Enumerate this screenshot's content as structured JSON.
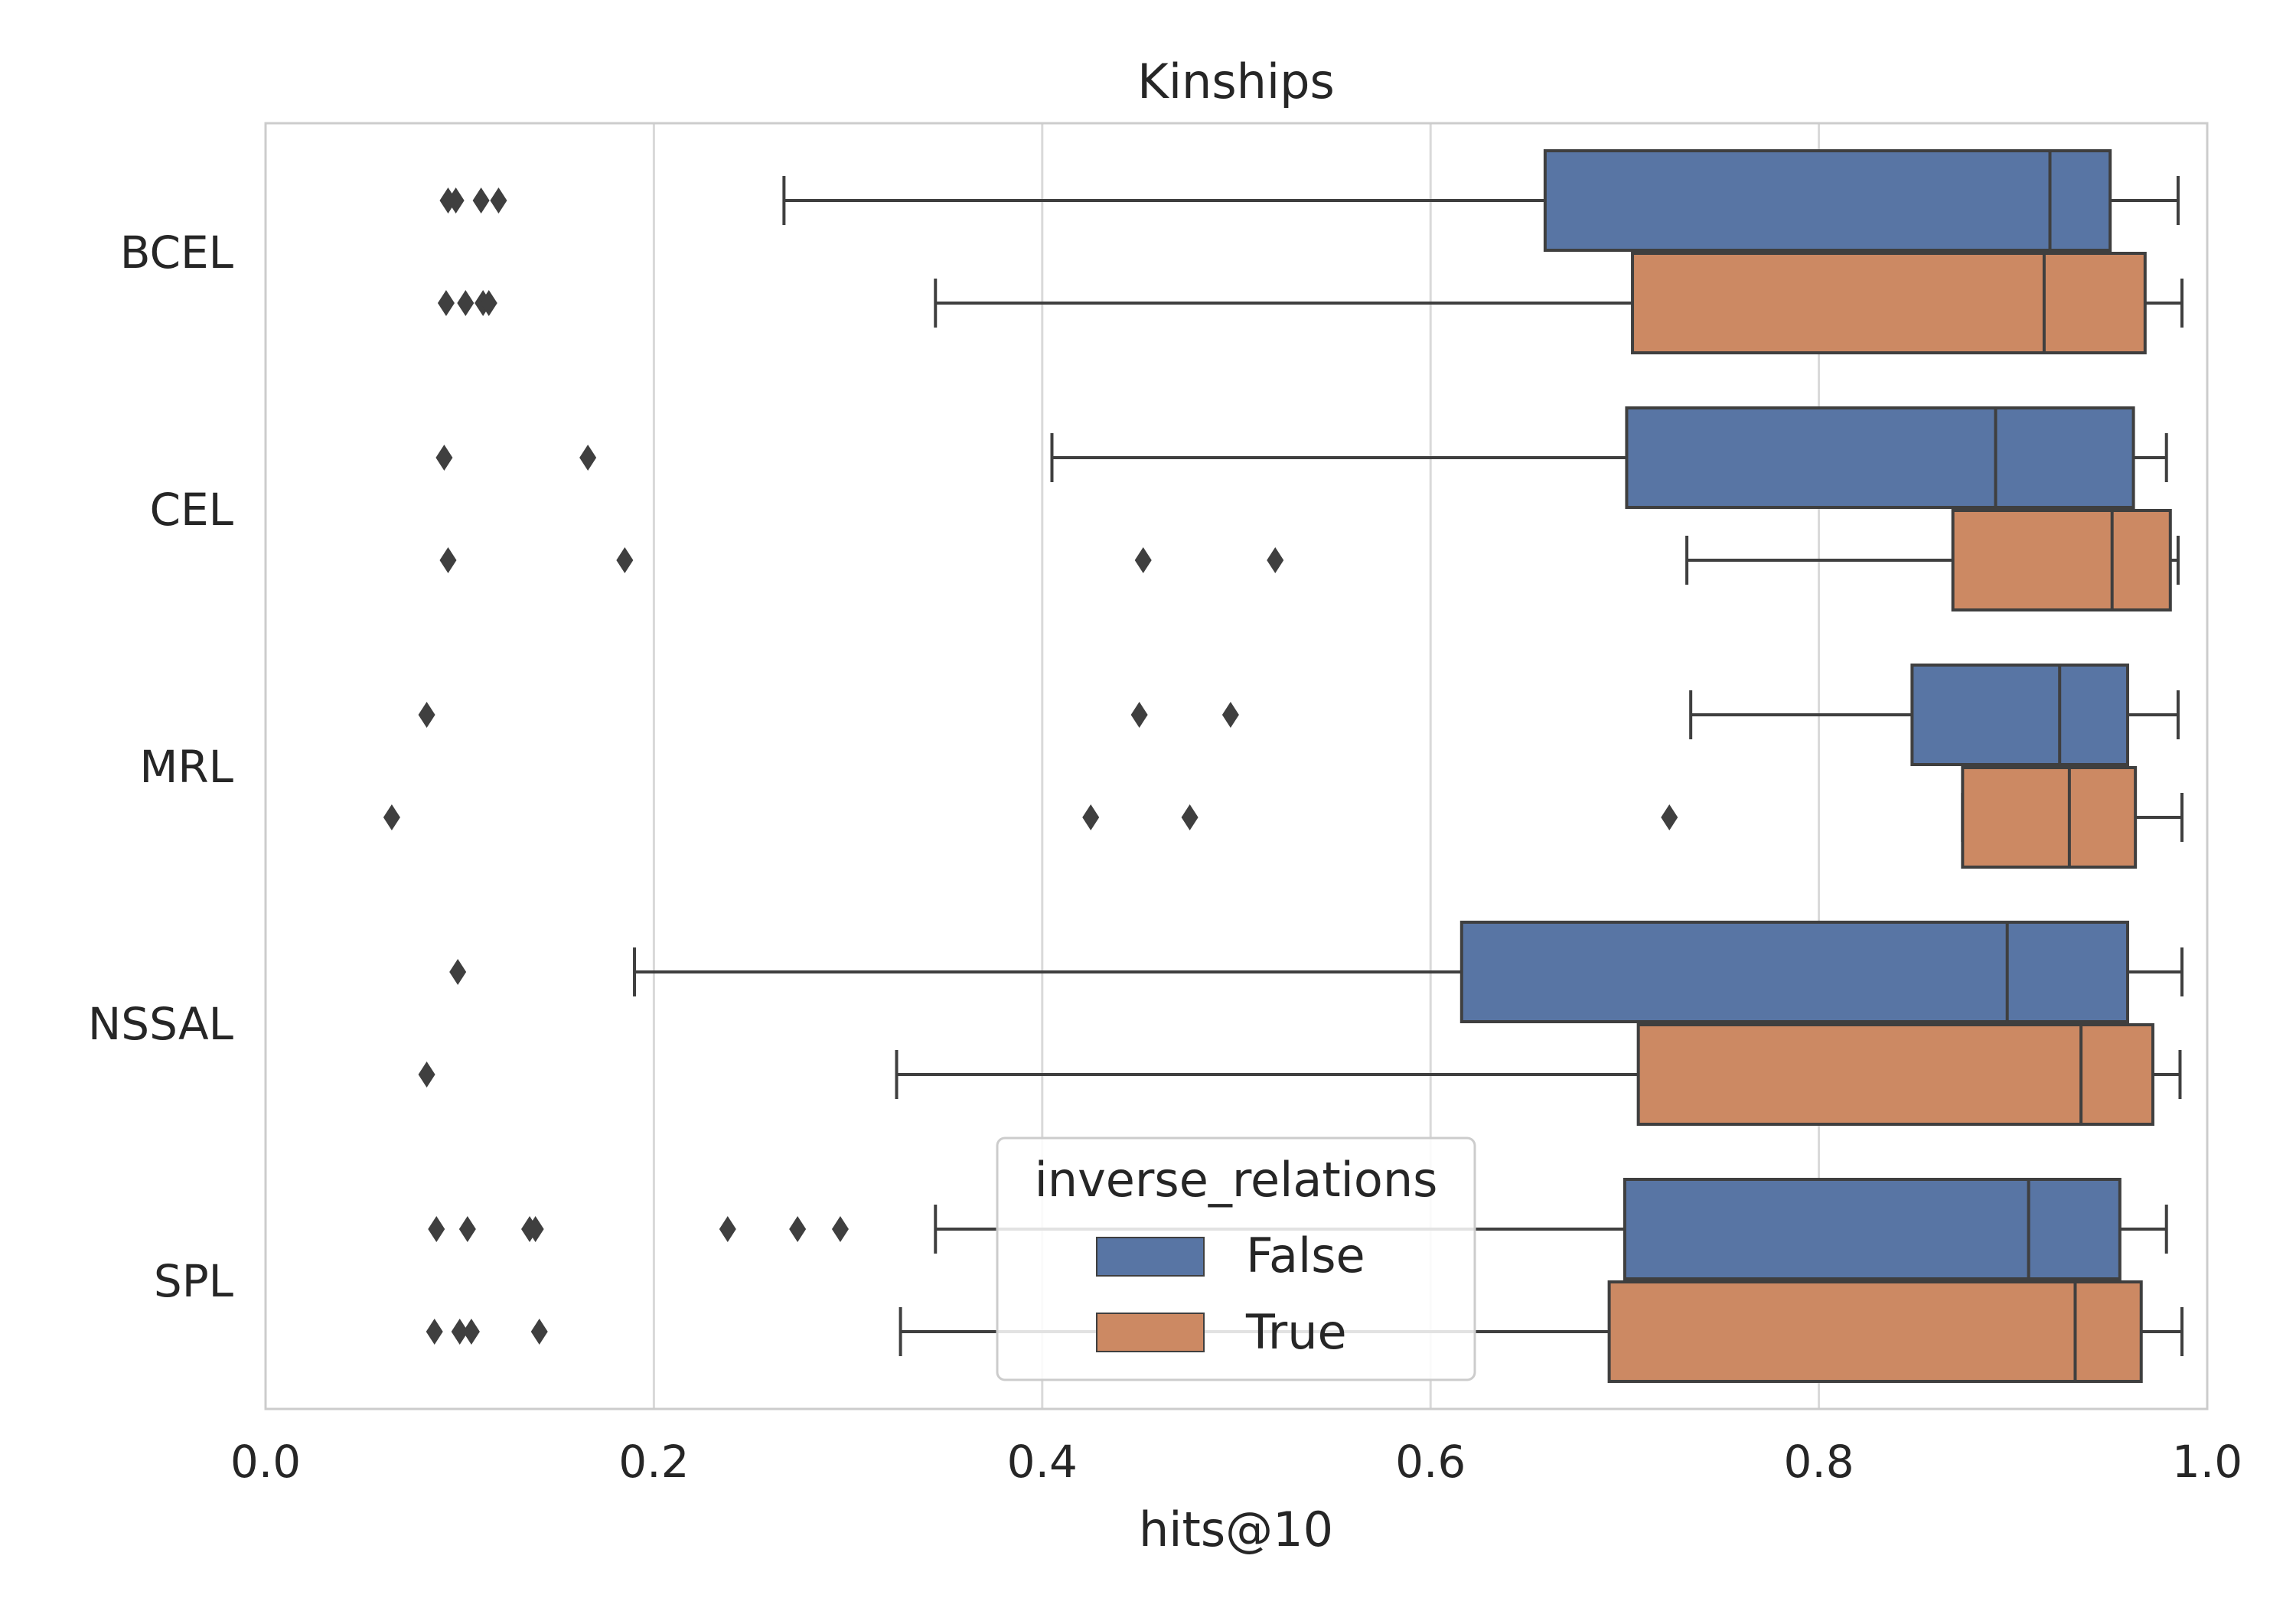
{
  "chart_data": {
    "type": "boxplot",
    "orientation": "horizontal",
    "title": "Kinships",
    "xlabel": "hits@10",
    "ylabel": "",
    "xlim": [
      0.0,
      1.0
    ],
    "xticks": [
      "0.0",
      "0.2",
      "0.4",
      "0.6",
      "0.8",
      "1.0"
    ],
    "categories": [
      "BCEL",
      "CEL",
      "MRL",
      "NSSAL",
      "SPL"
    ],
    "grid": "vertical",
    "legend": {
      "title": "inverse_relations",
      "placement": "lower center",
      "entries": [
        "False",
        "True"
      ]
    },
    "series": [
      {
        "name": "False",
        "color": "#5875a4",
        "boxes": [
          {
            "category": "BCEL",
            "whisker_low": 0.267,
            "q1": 0.659,
            "median": 0.919,
            "q3": 0.95,
            "whisker_high": 0.985,
            "outliers": [
              0.094,
              0.098,
              0.111,
              0.12
            ]
          },
          {
            "category": "CEL",
            "whisker_low": 0.405,
            "q1": 0.701,
            "median": 0.891,
            "q3": 0.962,
            "whisker_high": 0.979,
            "outliers": [
              0.092,
              0.166
            ]
          },
          {
            "category": "MRL",
            "whisker_low": 0.734,
            "q1": 0.848,
            "median": 0.924,
            "q3": 0.959,
            "whisker_high": 0.985,
            "outliers": [
              0.083,
              0.45,
              0.497
            ]
          },
          {
            "category": "NSSAL",
            "whisker_low": 0.19,
            "q1": 0.616,
            "median": 0.897,
            "q3": 0.959,
            "whisker_high": 0.987,
            "outliers": [
              0.099
            ]
          },
          {
            "category": "SPL",
            "whisker_low": 0.345,
            "q1": 0.7,
            "median": 0.908,
            "q3": 0.955,
            "whisker_high": 0.979,
            "outliers": [
              0.088,
              0.104,
              0.136,
              0.139,
              0.238,
              0.274,
              0.296
            ]
          }
        ]
      },
      {
        "name": "True",
        "color": "#cc8963",
        "boxes": [
          {
            "category": "BCEL",
            "whisker_low": 0.345,
            "q1": 0.704,
            "median": 0.916,
            "q3": 0.968,
            "whisker_high": 0.987,
            "outliers": [
              0.093,
              0.103,
              0.112,
              0.115
            ]
          },
          {
            "category": "CEL",
            "whisker_low": 0.732,
            "q1": 0.869,
            "median": 0.951,
            "q3": 0.981,
            "whisker_high": 0.985,
            "outliers": [
              0.094,
              0.185,
              0.452,
              0.52
            ]
          },
          {
            "category": "MRL",
            "whisker_low": 0.874,
            "q1": 0.874,
            "median": 0.929,
            "q3": 0.963,
            "whisker_high": 0.987,
            "outliers": [
              0.065,
              0.425,
              0.476,
              0.723
            ]
          },
          {
            "category": "NSSAL",
            "whisker_low": 0.325,
            "q1": 0.707,
            "median": 0.935,
            "q3": 0.972,
            "whisker_high": 0.986,
            "outliers": [
              0.083
            ]
          },
          {
            "category": "SPL",
            "whisker_low": 0.327,
            "q1": 0.692,
            "median": 0.932,
            "q3": 0.966,
            "whisker_high": 0.987,
            "outliers": [
              0.087,
              0.1,
              0.106,
              0.141
            ]
          }
        ]
      }
    ]
  }
}
